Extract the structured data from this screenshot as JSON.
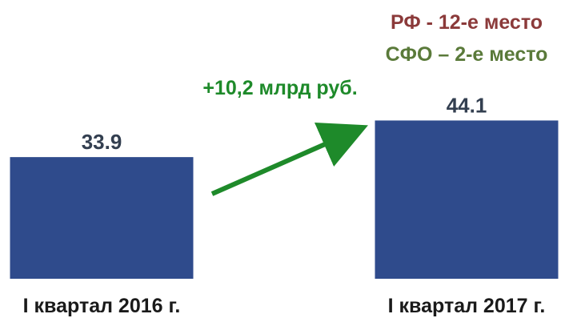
{
  "chart_data": {
    "type": "bar",
    "categories": [
      "I квартал 2016 г.",
      "I квартал 2017 г."
    ],
    "values": [
      33.9,
      44.1
    ],
    "value_labels": [
      "33.9",
      "44.1"
    ],
    "title": "",
    "xlabel": "",
    "ylabel": "",
    "grid": false,
    "annotations": {
      "change": "+10,2 млрд руб.",
      "rank_rf": "РФ - 12-е место",
      "rank_sfo": "СФО – 2-е место"
    },
    "colors": {
      "bar": "#2f4b8c",
      "value_label": "#333f50",
      "category_label": "#1a1a1a",
      "arrow": "#1e8a2a",
      "change_text": "#1e8a2a",
      "rank_rf": "#8b3a3a",
      "rank_sfo": "#5a7a3a"
    }
  }
}
